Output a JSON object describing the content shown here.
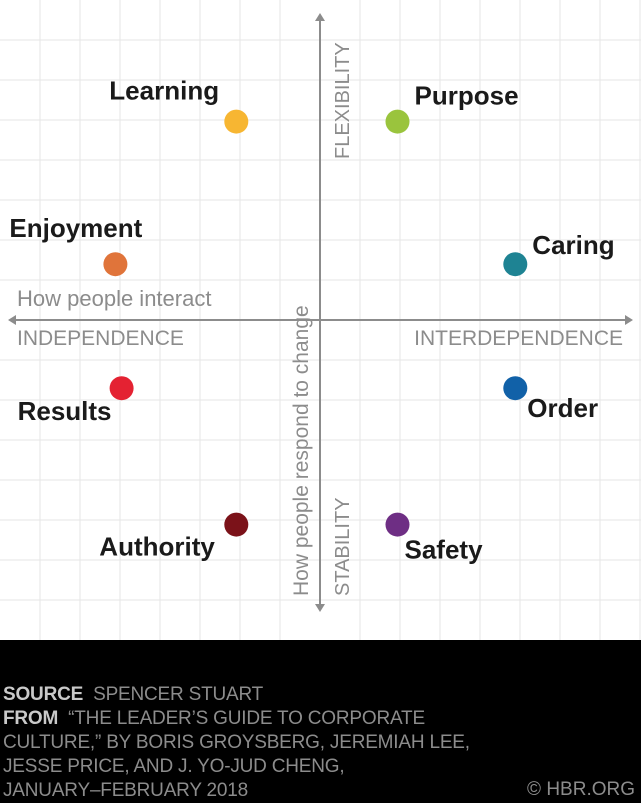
{
  "chart_data": {
    "type": "scatter",
    "title": "",
    "axis_labels": {
      "horizontal_title": "How people interact",
      "horizontal_left": "INDEPENDENCE",
      "horizontal_right": "INTERDEPENDENCE",
      "vertical_title": "How people respond to change",
      "vertical_top": "FLEXIBILITY",
      "vertical_bottom": "STABILITY"
    },
    "xlim": [
      -1,
      1
    ],
    "ylim": [
      -1,
      1
    ],
    "grid": true,
    "points": [
      {
        "name": "Learning",
        "x": -0.27,
        "y": 0.64,
        "color": "#f7b632"
      },
      {
        "name": "Purpose",
        "x": 0.25,
        "y": 0.64,
        "color": "#9ac43d"
      },
      {
        "name": "Enjoyment",
        "x": -0.66,
        "y": 0.18,
        "color": "#e0743a"
      },
      {
        "name": "Caring",
        "x": 0.63,
        "y": 0.18,
        "color": "#1e8393"
      },
      {
        "name": "Results",
        "x": -0.64,
        "y": -0.22,
        "color": "#e42232"
      },
      {
        "name": "Order",
        "x": 0.63,
        "y": -0.22,
        "color": "#1161a8"
      },
      {
        "name": "Authority",
        "x": -0.27,
        "y": -0.66,
        "color": "#7b1219"
      },
      {
        "name": "Safety",
        "x": 0.25,
        "y": -0.66,
        "color": "#6e2e84"
      }
    ]
  },
  "footer": {
    "source_label": "SOURCE",
    "source_text": "SPENCER STUART",
    "from_label": "FROM",
    "from_lines": [
      "“THE LEADER’S GUIDE TO CORPORATE",
      "CULTURE,” BY BORIS GROYSBERG, JEREMIAH LEE,",
      "JESSE PRICE, AND J. YO-JUD CHENG,",
      "JANUARY–FEBRUARY 2018"
    ],
    "credit": "© HBR.ORG"
  }
}
